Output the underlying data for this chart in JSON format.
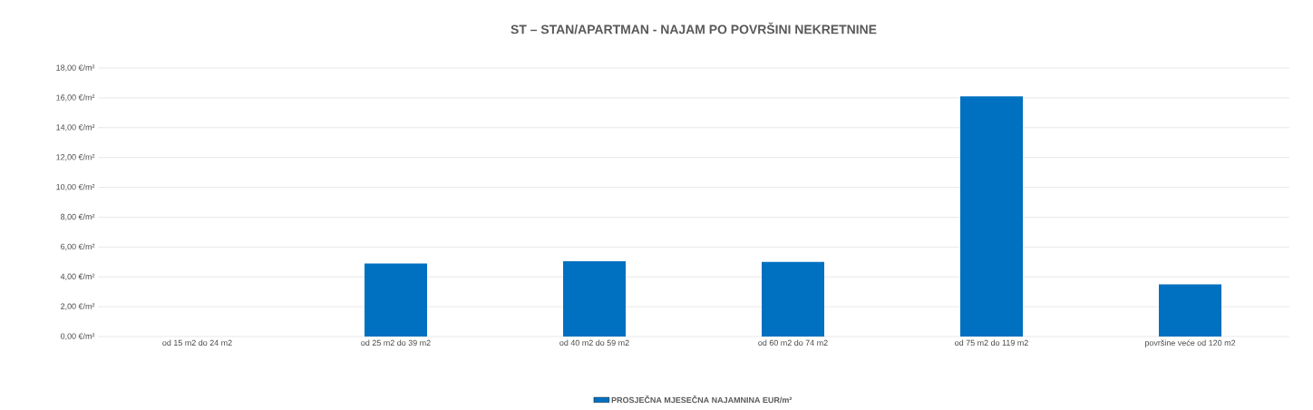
{
  "chart_data": {
    "type": "bar",
    "title": "ST – STAN/APARTMAN - NAJAM PO POVRŠINI NEKRETNINE",
    "categories": [
      "od 15 m2 do 24 m2",
      "od 25 m2 do 39 m2",
      "od 40 m2 do 59 m2",
      "od 60 m2 do 74 m2",
      "od 75 m2 do 119 m2",
      "površine veće od 120 m2"
    ],
    "series": [
      {
        "name": "PROSJEČNA MJESEČNA NAJAMNINA EUR/m²",
        "color": "#0070c0",
        "values": [
          null,
          4.9,
          5.05,
          5.0,
          16.1,
          3.5
        ]
      }
    ],
    "ylim": [
      0,
      18
    ],
    "yticks": [
      {
        "value": 0,
        "label": "0,00 €/m²"
      },
      {
        "value": 2,
        "label": "2,00 €/m²"
      },
      {
        "value": 4,
        "label": "4,00 €/m²"
      },
      {
        "value": 6,
        "label": "6,00 €/m²"
      },
      {
        "value": 8,
        "label": "8,00 €/m²"
      },
      {
        "value": 10,
        "label": "10,00 €/m²"
      },
      {
        "value": 12,
        "label": "12,00 €/m²"
      },
      {
        "value": 14,
        "label": "14,00 €/m²"
      },
      {
        "value": 16,
        "label": "16,00 €/m²"
      },
      {
        "value": 18,
        "label": "18,00 €/m²"
      }
    ],
    "grid": "y",
    "legend": "bottom"
  }
}
